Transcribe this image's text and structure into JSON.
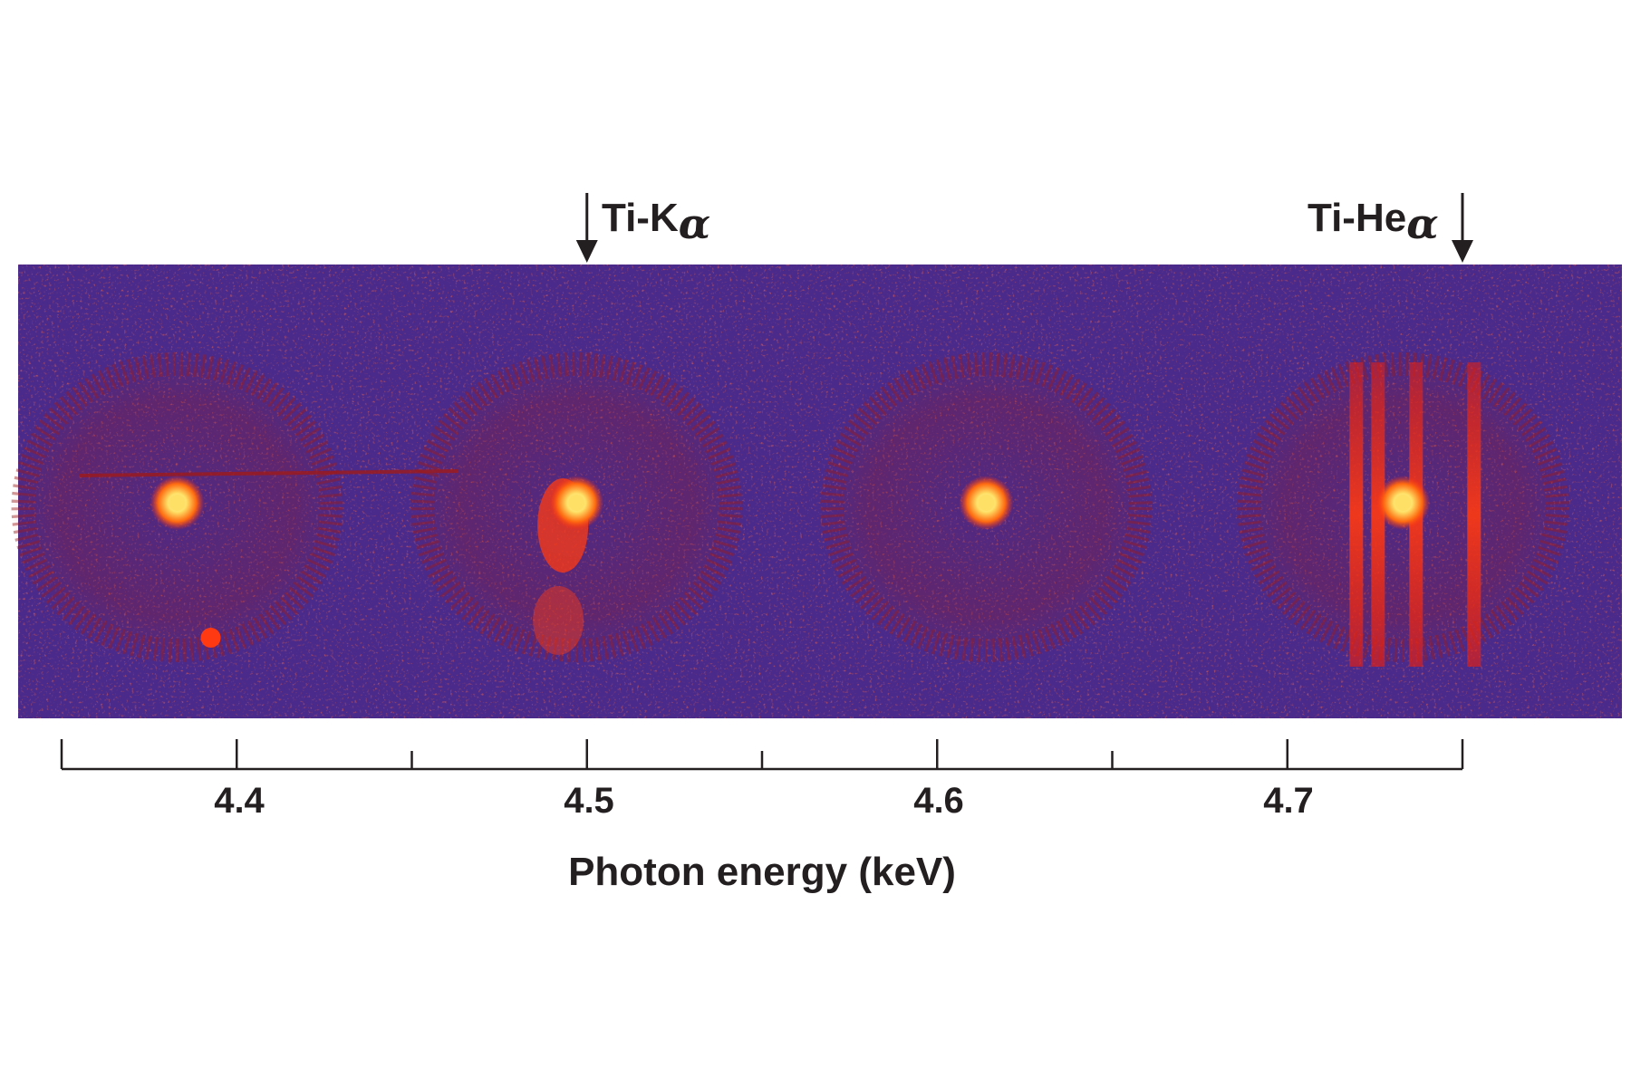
{
  "figure": {
    "colors": {
      "background": "#4a2a8a",
      "noise": "#9e1a1a",
      "hot": "#ff3a12",
      "core": "#ffe066",
      "axis": "#231f20"
    },
    "image_panel": {
      "colormap": "hot-on-purple",
      "blobs": [
        {
          "x_keV": 4.383,
          "has_core_spot": true
        },
        {
          "x_keV": 4.497,
          "has_core_spot": true
        },
        {
          "x_keV": 4.614,
          "has_core_spot": true
        },
        {
          "x_keV": 4.733,
          "has_core_spot": true,
          "vertical_streaks": 4
        }
      ]
    },
    "annotations": [
      {
        "main": "Ti-K",
        "sub": "α",
        "arrow_at_keV": 4.5
      },
      {
        "main": "Ti-He",
        "sub": "α",
        "arrow_at_keV": 4.75
      }
    ],
    "axis": {
      "title": "Photon energy (keV)",
      "range_keV": [
        4.35,
        4.75
      ],
      "major_ticks": [
        4.4,
        4.5,
        4.6,
        4.7
      ],
      "major_tick_labels": [
        "4.4",
        "4.5",
        "4.6",
        "4.7"
      ],
      "minor_ticks": [
        4.35,
        4.45,
        4.55,
        4.65,
        4.75
      ]
    }
  }
}
